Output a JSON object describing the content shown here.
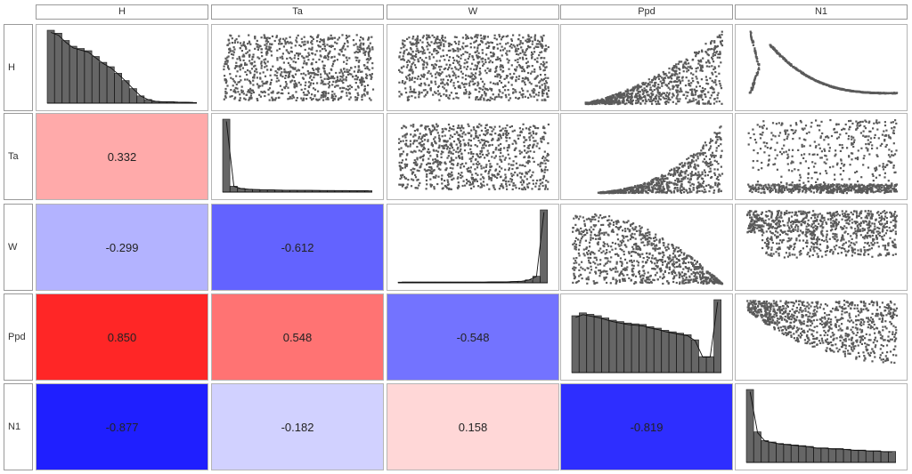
{
  "chart_data": {
    "type": "scatterplot-matrix",
    "variables": [
      "H",
      "Ta",
      "W",
      "Ppd",
      "N1"
    ],
    "lower_panels": "correlation",
    "diagonal_panels": "histogram",
    "upper_panels": "scatter",
    "correlations": [
      {
        "row": "Ta",
        "col": "H",
        "value": "0.332",
        "r": 0.332
      },
      {
        "row": "W",
        "col": "H",
        "value": "-0.299",
        "r": -0.299
      },
      {
        "row": "W",
        "col": "Ta",
        "value": "-0.612",
        "r": -0.612
      },
      {
        "row": "Ppd",
        "col": "H",
        "value": "0.850",
        "r": 0.85
      },
      {
        "row": "Ppd",
        "col": "Ta",
        "value": "0.548",
        "r": 0.548
      },
      {
        "row": "Ppd",
        "col": "W",
        "value": "-0.548",
        "r": -0.548
      },
      {
        "row": "N1",
        "col": "H",
        "value": "-0.877",
        "r": -0.877
      },
      {
        "row": "N1",
        "col": "Ta",
        "value": "-0.182",
        "r": -0.182
      },
      {
        "row": "N1",
        "col": "W",
        "value": "0.158",
        "r": 0.158
      },
      {
        "row": "N1",
        "col": "Ppd",
        "value": "-0.819",
        "r": -0.819
      }
    ],
    "histograms": {
      "H": [
        1.0,
        0.96,
        0.86,
        0.78,
        0.75,
        0.72,
        0.64,
        0.56,
        0.5,
        0.41,
        0.31,
        0.2,
        0.1,
        0.05,
        0.025,
        0.02,
        0.02,
        0.015,
        0.012,
        0.01
      ],
      "Ta": [
        1.0,
        0.08,
        0.05,
        0.04,
        0.035,
        0.03,
        0.03,
        0.028,
        0.026,
        0.025,
        0.024,
        0.024,
        0.023,
        0.022,
        0.022,
        0.021,
        0.021,
        0.02,
        0.02,
        0.02
      ],
      "W": [
        0.01,
        0.01,
        0.01,
        0.01,
        0.01,
        0.01,
        0.01,
        0.01,
        0.01,
        0.01,
        0.01,
        0.01,
        0.012,
        0.012,
        0.014,
        0.017,
        0.022,
        0.04,
        0.09,
        1.0
      ],
      "Ppd": [
        0.78,
        0.82,
        0.8,
        0.78,
        0.75,
        0.72,
        0.7,
        0.68,
        0.67,
        0.66,
        0.63,
        0.61,
        0.58,
        0.56,
        0.54,
        0.52,
        0.45,
        0.22,
        0.22,
        1.0
      ],
      "N1": [
        1.0,
        0.42,
        0.3,
        0.28,
        0.26,
        0.25,
        0.24,
        0.23,
        0.22,
        0.2,
        0.2,
        0.19,
        0.19,
        0.18,
        0.17,
        0.17,
        0.16,
        0.16,
        0.15,
        0.15
      ]
    },
    "scatter_shapes": {
      "H-Ta": "uniform-band",
      "H-W": "uniform-band",
      "H-Ppd": "wedge-rising",
      "H-N1": "curve-c",
      "Ta-W": "uniform-band",
      "Ta-Ppd": "wedge-rising-steep",
      "Ta-N1": "dense-bottom",
      "W-Ppd": "wedge-falling",
      "W-N1": "band-cloud",
      "Ppd-N1": "curved-band"
    },
    "colors": {
      "positive": "#ff0000",
      "negative": "#0000ff",
      "points": "#5a5a5a",
      "hist_fill": "#666666"
    }
  }
}
